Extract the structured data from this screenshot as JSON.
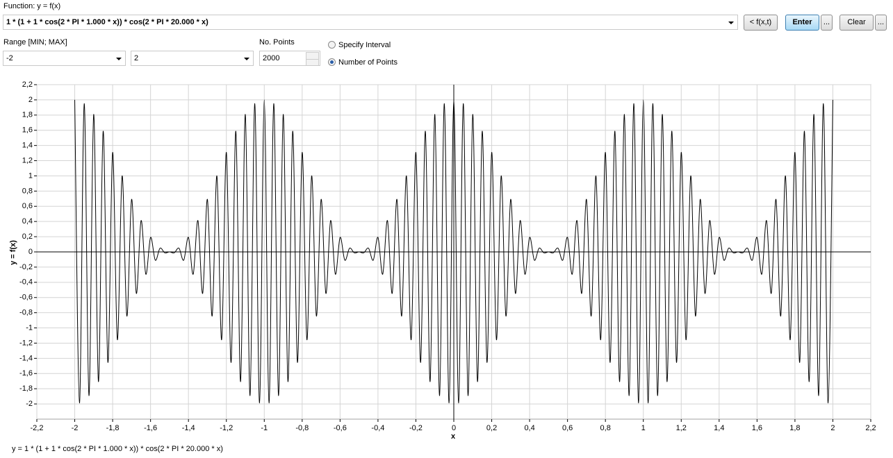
{
  "ui": {
    "function_label": "Function: y = f(x)",
    "function_text": "1 * (1 + 1 * cos(2 * PI * 1.000 * x)) * cos(2 * PI * 20.000 * x)",
    "buttons": [
      "< f(x,t)",
      "Enter",
      "...",
      "Clear",
      "..."
    ],
    "range_label": "Range [MIN; MAX]",
    "range_min": "-2",
    "range_max": "2",
    "points_label": "No. Points",
    "points_value": "2000",
    "radio_options": [
      "Specify Interval",
      "Number of Points"
    ],
    "footer": "y = 1 * (1 + 1 * cos(2 * PI * 1.000 * x)) * cos(2 * PI * 20.000 * x)"
  },
  "chart_data": {
    "type": "line",
    "x_label": "x",
    "y_label": "y = f(x)",
    "color": "#000000",
    "grid": true,
    "xlim": [
      -2.2,
      2.2
    ],
    "ylim": [
      -2.2,
      2.2
    ],
    "xticks": [
      {
        "value": -2.2,
        "label": "-2,2"
      },
      -2,
      {
        "value": -1.8,
        "label": "-1,8"
      },
      {
        "value": -1.6,
        "label": "-1,6"
      },
      {
        "value": -1.4,
        "label": "-1,4"
      },
      {
        "value": -1.2,
        "label": "-1,2"
      },
      -1,
      {
        "value": -0.8,
        "label": "-0,8"
      },
      {
        "value": -0.6,
        "label": "-0,6"
      },
      {
        "value": -0.4,
        "label": "-0,4"
      },
      {
        "value": -0.2,
        "label": "-0,2"
      },
      0,
      {
        "value": 0.2,
        "label": "0,2"
      },
      {
        "value": 0.4,
        "label": "0,4"
      },
      {
        "value": 0.6,
        "label": "0,6"
      },
      {
        "value": 0.8,
        "label": "0,8"
      },
      1,
      {
        "value": 1.2,
        "label": "1,2"
      },
      {
        "value": 1.4,
        "label": "1,4"
      },
      {
        "value": 1.6,
        "label": "1,6"
      },
      {
        "value": 1.8,
        "label": "1,8"
      },
      2,
      {
        "value": 2.2,
        "label": "2,2"
      }
    ],
    "yticks": [
      -2,
      {
        "value": -1.8,
        "label": "-1,8"
      },
      {
        "value": -1.6,
        "label": "-1,6"
      },
      {
        "value": -1.4,
        "label": "-1,4"
      },
      {
        "value": -1.2,
        "label": "-1,2"
      },
      -1,
      {
        "value": -0.8,
        "label": "-0,8"
      },
      {
        "value": -0.6,
        "label": "-0,6"
      },
      {
        "value": -0.4,
        "label": "-0,4"
      },
      {
        "value": -0.2,
        "label": "-0,2"
      },
      0,
      {
        "value": 0.2,
        "label": "0,2"
      },
      {
        "value": 0.4,
        "label": "0,4"
      },
      {
        "value": 0.6,
        "label": "0,6"
      },
      {
        "value": 0.8,
        "label": "0,8"
      },
      1,
      {
        "value": 1.2,
        "label": "1,2"
      },
      {
        "value": 1.4,
        "label": "1,4"
      },
      {
        "value": 1.6,
        "label": "1,6"
      },
      {
        "value": 1.8,
        "label": "1,8"
      },
      2,
      {
        "value": 2.2,
        "label": "2,2"
      }
    ],
    "x": [
      -2,
      -1.975,
      -1.95,
      -1.925,
      -1.9,
      -1.875,
      -1.85,
      -1.825,
      -1.8,
      -1.775,
      -1.75,
      -1.725,
      -1.7,
      -1.675,
      -1.65,
      -1.625,
      -1.6,
      -1.575,
      -1.55,
      -1.525,
      -1.5,
      -1.475,
      -1.45,
      -1.425,
      -1.4,
      -1.375,
      -1.35,
      -1.325,
      -1.3,
      -1.275,
      -1.25,
      -1.225,
      -1.2,
      -1.175,
      -1.15,
      -1.125,
      -1.1,
      -1.075,
      -1.05,
      -1.025,
      -1,
      -0.975,
      -0.95,
      -0.925,
      -0.9,
      -0.875,
      -0.85,
      -0.825,
      -0.8,
      -0.775,
      -0.75,
      -0.725,
      -0.7,
      -0.675,
      -0.65,
      -0.625,
      -0.6,
      -0.575,
      -0.55,
      -0.525,
      -0.5,
      -0.475,
      -0.45,
      -0.425,
      -0.4,
      -0.375,
      -0.35,
      -0.325,
      -0.3,
      -0.275,
      -0.25,
      -0.225,
      -0.2,
      -0.175,
      -0.15,
      -0.125,
      -0.1,
      -0.075,
      -0.05,
      -0.025,
      0,
      0.025,
      0.05,
      0.075,
      0.1,
      0.125,
      0.15,
      0.175,
      0.2,
      0.225,
      0.25,
      0.275,
      0.3,
      0.325,
      0.35,
      0.375,
      0.4,
      0.425,
      0.45,
      0.475,
      0.5,
      0.525,
      0.55,
      0.575,
      0.6,
      0.625,
      0.65,
      0.675,
      0.7,
      0.725,
      0.75,
      0.775,
      0.8,
      0.825,
      0.85,
      0.875,
      0.9,
      0.925,
      0.95,
      0.975,
      1,
      1.025,
      1.05,
      1.075,
      1.1,
      1.125,
      1.15,
      1.175,
      1.2,
      1.225,
      1.25,
      1.275,
      1.3,
      1.325,
      1.35,
      1.375,
      1.4,
      1.425,
      1.45,
      1.475,
      1.5,
      1.525,
      1.55,
      1.575,
      1.6,
      1.625,
      1.65,
      1.675,
      1.7,
      1.725,
      1.75,
      1.775,
      1.8,
      1.825,
      1.85,
      1.875,
      1.9,
      1.925,
      1.95,
      1.975,
      2
    ],
    "values": [
      2,
      -1.988,
      1.951,
      -1.891,
      1.809,
      -1.707,
      1.588,
      -1.454,
      1.309,
      -1.156,
      1,
      -0.844,
      0.691,
      -0.546,
      0.412,
      -0.293,
      0.191,
      -0.109,
      0.049,
      -0.012,
      0,
      -0.012,
      0.049,
      -0.109,
      0.191,
      -0.293,
      0.412,
      -0.546,
      0.691,
      -0.844,
      1,
      -1.156,
      1.309,
      -1.454,
      1.588,
      -1.707,
      1.809,
      -1.891,
      1.951,
      -1.988,
      2,
      -1.988,
      1.951,
      -1.891,
      1.809,
      -1.707,
      1.588,
      -1.454,
      1.309,
      -1.156,
      1,
      -0.844,
      0.691,
      -0.546,
      0.412,
      -0.293,
      0.191,
      -0.109,
      0.049,
      -0.012,
      0,
      -0.012,
      0.049,
      -0.109,
      0.191,
      -0.293,
      0.412,
      -0.546,
      0.691,
      -0.844,
      1,
      -1.156,
      1.309,
      -1.454,
      1.588,
      -1.707,
      1.809,
      -1.891,
      1.951,
      -1.988,
      2,
      -1.988,
      1.951,
      -1.891,
      1.809,
      -1.707,
      1.588,
      -1.454,
      1.309,
      -1.156,
      1,
      -0.844,
      0.691,
      -0.546,
      0.412,
      -0.293,
      0.191,
      -0.109,
      0.049,
      -0.012,
      0,
      -0.012,
      0.049,
      -0.109,
      0.191,
      -0.293,
      0.412,
      -0.546,
      0.691,
      -0.844,
      1,
      -1.156,
      1.309,
      -1.454,
      1.588,
      -1.707,
      1.809,
      -1.891,
      1.951,
      -1.988,
      2,
      -1.988,
      1.951,
      -1.891,
      1.809,
      -1.707,
      1.588,
      -1.454,
      1.309,
      -1.156,
      1,
      -0.844,
      0.691,
      -0.546,
      0.412,
      -0.293,
      0.191,
      -0.109,
      0.049,
      -0.012,
      0,
      -0.012,
      0.049,
      -0.109,
      0.191,
      -0.293,
      0.412,
      -0.546,
      0.691,
      -0.844,
      1,
      -1.156,
      1.309,
      -1.454,
      1.588,
      -1.707,
      1.809,
      -1.891,
      1.951,
      -1.988,
      2
    ]
  }
}
